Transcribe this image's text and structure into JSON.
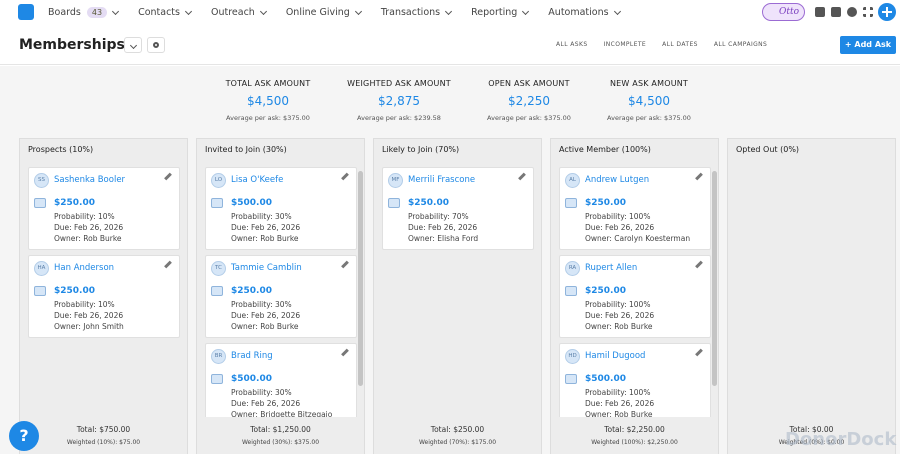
{
  "nav": {
    "items": [
      {
        "label": "Boards",
        "badge": "43"
      },
      {
        "label": "Contacts"
      },
      {
        "label": "Outreach"
      },
      {
        "label": "Online Giving"
      },
      {
        "label": "Transactions"
      },
      {
        "label": "Reporting"
      },
      {
        "label": "Automations"
      }
    ],
    "assistant": "Otto"
  },
  "header": {
    "title": "Memberships",
    "filters": [
      "ALL ASKS",
      "INCOMPLETE",
      "ALL DATES",
      "ALL CAMPAIGNS"
    ],
    "button": "Add Ask"
  },
  "summary": [
    {
      "label": "TOTAL ASK AMOUNT",
      "value": "$4,500",
      "sub": "Average per ask: $375.00"
    },
    {
      "label": "WEIGHTED ASK AMOUNT",
      "value": "$2,875",
      "sub": "Average per ask: $239.58"
    },
    {
      "label": "OPEN ASK AMOUNT",
      "value": "$2,250",
      "sub": "Average per ask: $375.00"
    },
    {
      "label": "NEW ASK AMOUNT",
      "value": "$4,500",
      "sub": "Average per ask: $375.00"
    }
  ],
  "columns": [
    {
      "title": "Prospects (10%)",
      "cards": [
        {
          "initials": "SS",
          "name": "Sashenka Booler",
          "amount": "$250.00",
          "probability": "Probability: 10%",
          "due": "Due: Feb 26, 2026",
          "owner": "Owner: Rob Burke"
        },
        {
          "initials": "HA",
          "name": "Han Anderson",
          "amount": "$250.00",
          "probability": "Probability: 10%",
          "due": "Due: Feb 26, 2026",
          "owner": "Owner: John Smith"
        }
      ],
      "total": "Total: $750.00",
      "weighted": "Weighted (10%): $75.00"
    },
    {
      "title": "Invited to Join (30%)",
      "cards": [
        {
          "initials": "LO",
          "name": "Lisa O'Keefe",
          "amount": "$500.00",
          "probability": "Probability: 30%",
          "due": "Due: Feb 26, 2026",
          "owner": "Owner: Rob Burke"
        },
        {
          "initials": "TC",
          "name": "Tammie Camblin",
          "amount": "$250.00",
          "probability": "Probability: 30%",
          "due": "Due: Feb 26, 2026",
          "owner": "Owner: Rob Burke"
        },
        {
          "initials": "BR",
          "name": "Brad Ring",
          "amount": "$500.00",
          "probability": "Probability: 30%",
          "due": "Due: Feb 26, 2026",
          "owner": "Owner: Bridgette Bitzegaio"
        }
      ],
      "total": "Total: $1,250.00",
      "weighted": "Weighted (30%): $375.00"
    },
    {
      "title": "Likely to Join (70%)",
      "cards": [
        {
          "initials": "MF",
          "name": "Merrili Frascone",
          "amount": "$250.00",
          "probability": "Probability: 70%",
          "due": "Due: Feb 26, 2026",
          "owner": "Owner: Elisha Ford"
        }
      ],
      "total": "Total: $250.00",
      "weighted": "Weighted (70%): $175.00"
    },
    {
      "title": "Active Member (100%)",
      "cards": [
        {
          "initials": "AL",
          "name": "Andrew Lutgen",
          "amount": "$250.00",
          "probability": "Probability: 100%",
          "due": "Due: Feb 26, 2026",
          "owner": "Owner: Carolyn Koesterman"
        },
        {
          "initials": "RA",
          "name": "Rupert Allen",
          "amount": "$250.00",
          "probability": "Probability: 100%",
          "due": "Due: Feb 26, 2026",
          "owner": "Owner: Rob Burke"
        },
        {
          "initials": "HD",
          "name": "Hamil Dugood",
          "amount": "$500.00",
          "probability": "Probability: 100%",
          "due": "Due: Feb 26, 2026",
          "owner": "Owner: Rob Burke"
        }
      ],
      "total": "Total: $2,250.00",
      "weighted": "Weighted (100%): $2,250.00"
    },
    {
      "title": "Opted Out (0%)",
      "cards": [],
      "total": "Total: $0.00",
      "weighted": "Weighted (0%): $0.00"
    }
  ],
  "watermark": "DonorDock"
}
